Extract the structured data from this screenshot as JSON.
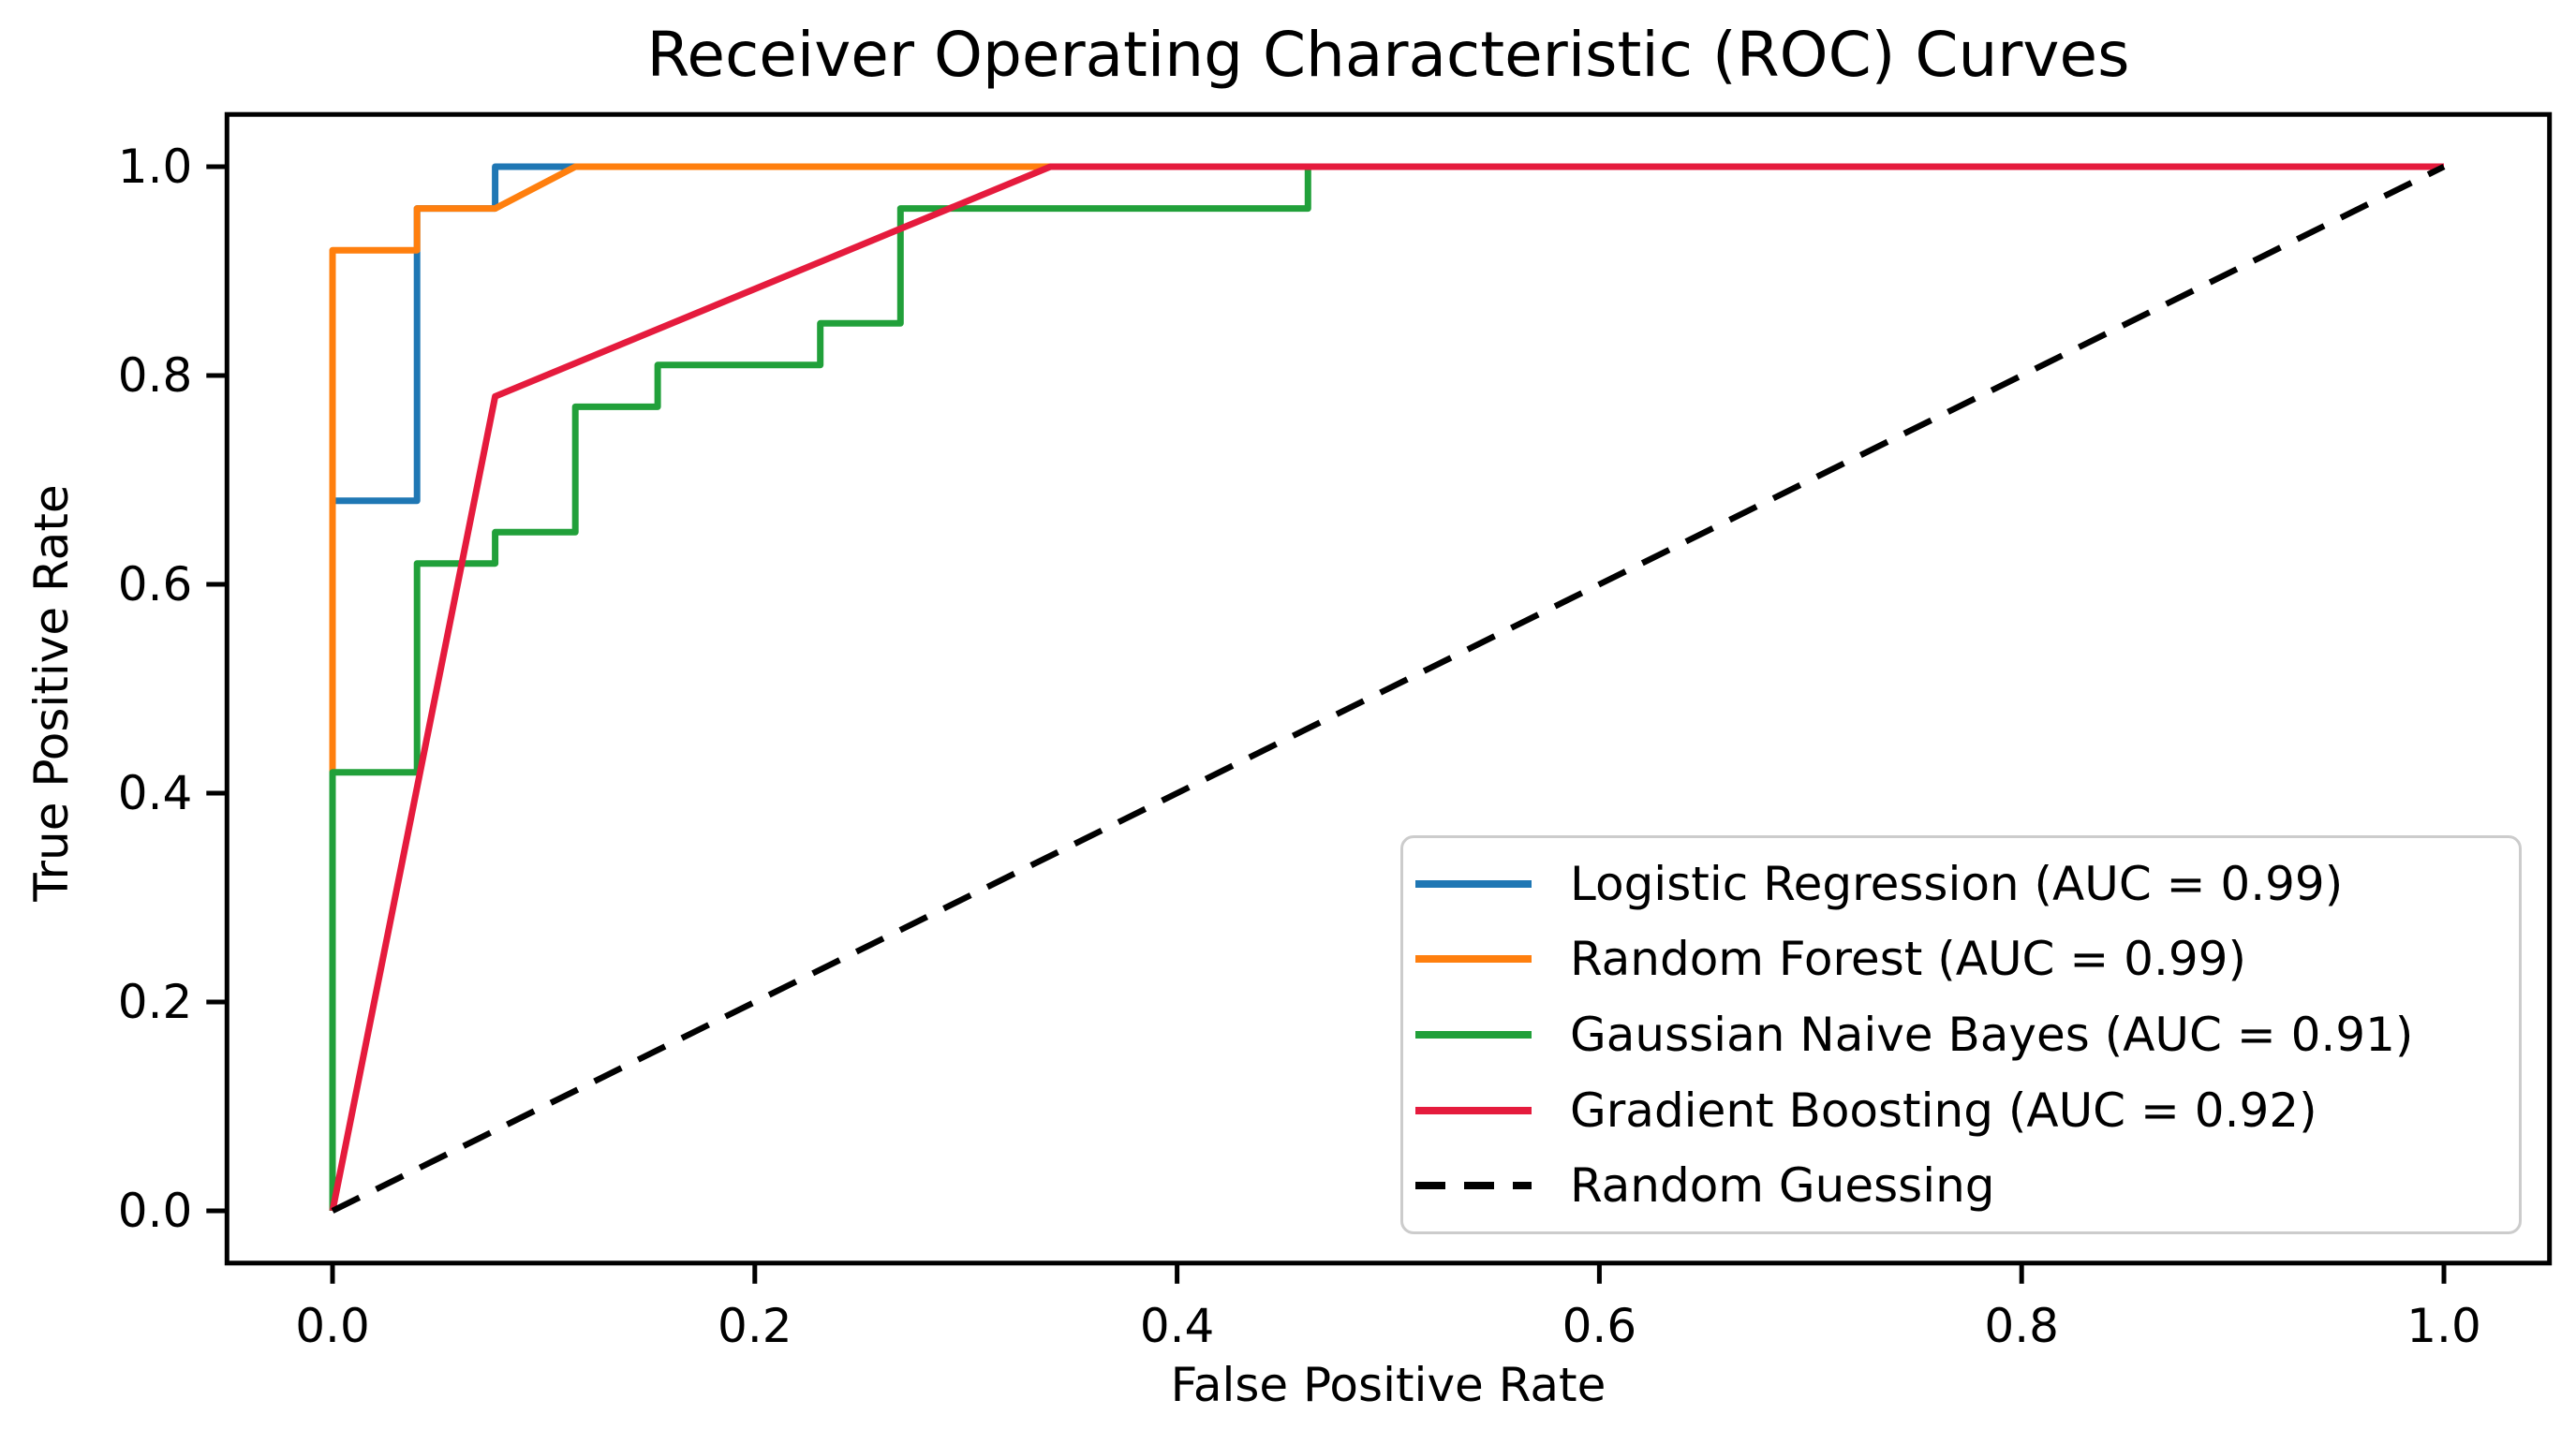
{
  "figure": {
    "title": "Receiver Operating Characteristic (ROC) Curves",
    "xlabel": "False Positive Rate",
    "ylabel": "True Positive Rate",
    "background": "#ffffff"
  },
  "chart_data": {
    "type": "line",
    "title": "Receiver Operating Characteristic (ROC) Curves",
    "xlabel": "False Positive Rate",
    "ylabel": "True Positive Rate",
    "xlim": [
      -0.05,
      1.05
    ],
    "ylim": [
      -0.05,
      1.05
    ],
    "grid": false,
    "legend_position": "lower right",
    "x_ticks": [
      "0.0",
      "0.2",
      "0.4",
      "0.6",
      "0.8",
      "1.0"
    ],
    "y_ticks": [
      "0.0",
      "0.2",
      "0.4",
      "0.6",
      "0.8",
      "1.0"
    ],
    "series": [
      {
        "id": "logistic-regression",
        "name": "Logistic Regression (AUC = 0.99)",
        "auc": 0.99,
        "color": "#1f77b4",
        "dash": false,
        "points": [
          [
            0,
            0
          ],
          [
            0,
            0.68
          ],
          [
            0.04,
            0.68
          ],
          [
            0.04,
            0.96
          ],
          [
            0.077,
            0.96
          ],
          [
            0.077,
            1.0
          ],
          [
            1.0,
            1.0
          ]
        ]
      },
      {
        "id": "random-forest",
        "name": "Random Forest (AUC = 0.99)",
        "auc": 0.99,
        "color": "#ff7f0e",
        "dash": false,
        "points": [
          [
            0,
            0
          ],
          [
            0,
            0.92
          ],
          [
            0.04,
            0.92
          ],
          [
            0.04,
            0.96
          ],
          [
            0.077,
            0.96
          ],
          [
            0.115,
            1.0
          ],
          [
            1.0,
            1.0
          ]
        ]
      },
      {
        "id": "gaussian-naive-bayes",
        "name": "Gaussian Naive Bayes (AUC = 0.91)",
        "auc": 0.91,
        "color": "#21a03a",
        "dash": false,
        "points": [
          [
            0,
            0
          ],
          [
            0,
            0.42
          ],
          [
            0.04,
            0.42
          ],
          [
            0.04,
            0.62
          ],
          [
            0.077,
            0.62
          ],
          [
            0.077,
            0.65
          ],
          [
            0.115,
            0.65
          ],
          [
            0.115,
            0.77
          ],
          [
            0.154,
            0.77
          ],
          [
            0.154,
            0.81
          ],
          [
            0.231,
            0.81
          ],
          [
            0.231,
            0.85
          ],
          [
            0.269,
            0.85
          ],
          [
            0.269,
            0.96
          ],
          [
            0.462,
            0.96
          ],
          [
            0.462,
            1.0
          ],
          [
            1.0,
            1.0
          ]
        ]
      },
      {
        "id": "gradient-boosting",
        "name": "Gradient Boosting (AUC = 0.92)",
        "auc": 0.92,
        "color": "#e51b3d",
        "dash": false,
        "points": [
          [
            0,
            0
          ],
          [
            0.077,
            0.78
          ],
          [
            0.34,
            1.0
          ],
          [
            1.0,
            1.0
          ]
        ]
      },
      {
        "id": "random-guessing",
        "name": "Random Guessing",
        "color": "#000000",
        "dash": true,
        "points": [
          [
            0,
            0
          ],
          [
            1.0,
            1.0
          ]
        ]
      }
    ]
  }
}
